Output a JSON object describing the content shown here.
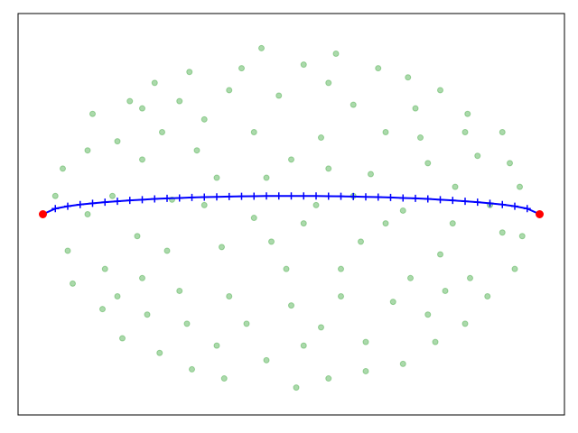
{
  "chart_data": {
    "type": "scatter",
    "xlim": [
      -1.1,
      1.1
    ],
    "ylim": [
      -1.1,
      1.1
    ],
    "series": [
      {
        "color": "#2ca02c",
        "marker": "o",
        "alpha": 0.4,
        "x": [
          -0.82,
          -0.65,
          -0.41,
          -0.12,
          0.18,
          0.47,
          0.71,
          0.88,
          0.93,
          0.79,
          0.58,
          0.3,
          0.02,
          -0.27,
          -0.53,
          -0.76,
          -0.9,
          -0.95,
          -0.6,
          -0.35,
          -0.05,
          0.25,
          0.52,
          0.66,
          0.6,
          0.41,
          0.12,
          -0.18,
          -0.45,
          -0.62,
          -0.3,
          0,
          0.32,
          0.28,
          -0.02,
          -0.28,
          0.1,
          -0.15,
          0.45,
          -0.48,
          -0.72,
          0.8,
          -0.2,
          0.05,
          0.35,
          0.6,
          -0.55,
          -0.8,
          0.85,
          -0.88,
          0.9,
          0.7,
          -0.68,
          -0.4,
          0.15,
          0.45,
          -0.1,
          0.3,
          -0.3,
          0.55,
          -0.58,
          0.72,
          -0.75,
          0.75,
          -0.7,
          0.5,
          -0.45,
          0.15,
          -0.25,
          0.38,
          -0.15,
          0.12,
          -0.52,
          -0.38,
          0.55,
          -0.6,
          0.48,
          0.2,
          -0.25,
          0,
          -0.42,
          0.62,
          -0.82,
          0.85,
          -0.5,
          0.2,
          0.65,
          -0.35,
          0.25,
          -0.1,
          0.15,
          -0.08,
          0.38,
          0.05,
          -0.6,
          0.92,
          -0.92,
          0.7,
          -0.7,
          0.05
        ],
        "y": [
          0.35,
          0.62,
          0.78,
          0.91,
          0.88,
          0.75,
          0.55,
          0.28,
          -0.12,
          -0.45,
          -0.7,
          -0.86,
          -0.95,
          -0.9,
          -0.76,
          -0.52,
          -0.2,
          0.1,
          0.3,
          0.52,
          0.65,
          0.6,
          0.42,
          0.15,
          -0.22,
          -0.48,
          -0.62,
          -0.6,
          -0.42,
          -0.12,
          0.2,
          0.3,
          0.22,
          -0.15,
          -0.3,
          -0.18,
          0.05,
          -0.02,
          0.02,
          0.08,
          0.1,
          0.05,
          0.8,
          0.82,
          0.8,
          0.68,
          0.72,
          0.55,
          0.45,
          -0.38,
          -0.3,
          -0.6,
          -0.68,
          -0.85,
          -0.9,
          -0.82,
          -0.8,
          -0.7,
          -0.72,
          -0.55,
          -0.55,
          -0.35,
          -0.3,
          0.32,
          0.4,
          0.58,
          0.62,
          0.72,
          0.68,
          0.45,
          0.45,
          0.42,
          0.45,
          0.35,
          0.28,
          -0.35,
          -0.35,
          -0.45,
          -0.45,
          -0.5,
          -0.6,
          -0.42,
          0,
          -0.1,
          -0.2,
          -0.3,
          -0.05,
          0.05,
          0.1,
          0.2,
          0.25,
          -0.15,
          -0.05,
          -0.05,
          0.58,
          0.15,
          0.25,
          0.45,
          -0.45,
          -0.72
        ]
      },
      {
        "color": "#0000ff",
        "marker": "+",
        "line": true,
        "x": [
          -1,
          -0.95,
          -0.9,
          -0.85,
          -0.8,
          -0.75,
          -0.7,
          -0.65,
          -0.6,
          -0.55,
          -0.5,
          -0.45,
          -0.4,
          -0.35,
          -0.3,
          -0.25,
          -0.2,
          -0.15,
          -0.1,
          -0.05,
          0,
          0.05,
          0.1,
          0.15,
          0.2,
          0.25,
          0.3,
          0.35,
          0.4,
          0.45,
          0.5,
          0.55,
          0.6,
          0.65,
          0.7,
          0.75,
          0.8,
          0.85,
          0.9,
          0.95,
          1
        ],
        "y": [
          0,
          0.031,
          0.044,
          0.053,
          0.06,
          0.066,
          0.071,
          0.076,
          0.08,
          0.084,
          0.087,
          0.089,
          0.092,
          0.094,
          0.095,
          0.097,
          0.098,
          0.099,
          0.1,
          0.1,
          0.1,
          0.1,
          0.1,
          0.099,
          0.098,
          0.097,
          0.095,
          0.094,
          0.092,
          0.089,
          0.087,
          0.084,
          0.08,
          0.076,
          0.071,
          0.066,
          0.06,
          0.053,
          0.044,
          0.031,
          0
        ]
      },
      {
        "color": "#ff0000",
        "marker": "o",
        "x": [
          -1,
          1
        ],
        "y": [
          0,
          0
        ]
      }
    ]
  }
}
